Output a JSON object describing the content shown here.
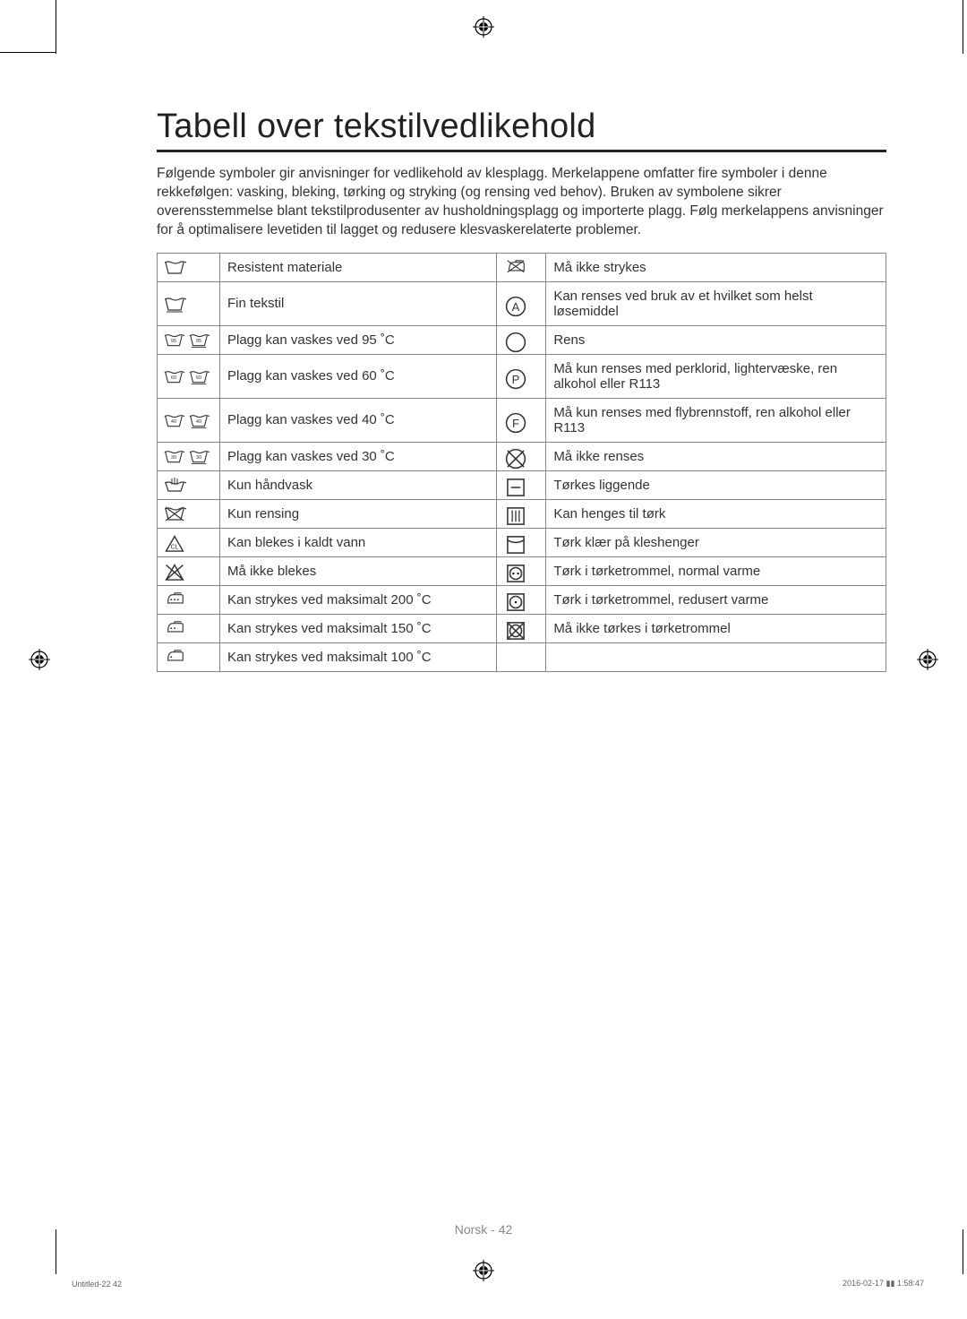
{
  "title": "Tabell over tekstilvedlikehold",
  "intro": "Følgende symboler gir anvisninger for vedlikehold av klesplagg. Merkelappene omfatter fire symboler i denne rekkefølgen: vasking, bleking, tørking og stryking (og rensing ved behov). Bruken av symbolene sikrer overensstemmelse blant tekstilprodusenter av husholdningsplagg og importerte plagg. Følg merkelappens anvisninger for å optimalisere levetiden til lagget og redusere klesvaskerelaterte problemer.",
  "rows": [
    {
      "l": "Resistent materiale",
      "r": "Må ikke strykes"
    },
    {
      "l": "Fin tekstil",
      "r": "Kan renses ved bruk av et hvilket som helst løsemiddel"
    },
    {
      "l": "Plagg kan vaskes ved 95 ˚C",
      "r": "Rens"
    },
    {
      "l": "Plagg kan vaskes ved 60 ˚C",
      "r": "Må kun renses med perklorid, lightervæske, ren alkohol eller R113"
    },
    {
      "l": "Plagg kan vaskes ved 40 ˚C",
      "r": "Må kun renses med flybrennstoff, ren alkohol eller R113"
    },
    {
      "l": "Plagg kan vaskes ved 30 ˚C",
      "r": "Må ikke renses"
    },
    {
      "l": "Kun håndvask",
      "r": "Tørkes liggende"
    },
    {
      "l": "Kun rensing",
      "r": "Kan henges til tørk"
    },
    {
      "l": "Kan blekes i kaldt vann",
      "r": "Tørk klær på kleshenger"
    },
    {
      "l": "Må ikke blekes",
      "r": "Tørk i tørketrommel, normal varme"
    },
    {
      "l": "Kan strykes ved maksimalt 200 ˚C",
      "r": "Tørk i tørketrommel, redusert varme"
    },
    {
      "l": "Kan strykes ved maksimalt 150 ˚C",
      "r": "Må ikke tørkes i tørketrommel"
    },
    {
      "l": "Kan strykes ved maksimalt 100 ˚C",
      "r": ""
    }
  ],
  "icons_left": [
    "tub",
    "tub-underline",
    "tub-95-double",
    "tub-60-double",
    "tub-40-double",
    "tub-30-double",
    "hand-wash",
    "tub-cross",
    "triangle-cl",
    "triangle-cross",
    "iron-3",
    "iron-2",
    "iron-1"
  ],
  "icons_right": [
    "iron-cross",
    "circle-a",
    "circle",
    "circle-p",
    "circle-f",
    "circle-cross",
    "square-dash",
    "square-lines",
    "square-curve",
    "square-circ-2",
    "square-circ-1",
    "square-circ-cross",
    ""
  ],
  "footer": "Norsk - 42",
  "footer_left": "Untitled-22   42",
  "footer_right": "2016-02-17   ▮▮ 1:58:47"
}
